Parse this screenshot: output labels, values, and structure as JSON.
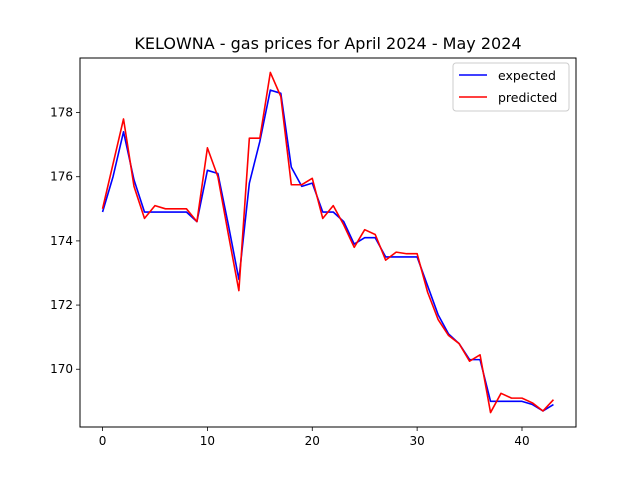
{
  "chart_data": {
    "type": "line",
    "title": "KELOWNA - gas prices for April 2024 - May 2024",
    "xlabel": "",
    "ylabel": "",
    "xlim": [
      -2.15,
      45.15
    ],
    "ylim": [
      168.2,
      179.7
    ],
    "xticks": [
      0,
      10,
      20,
      30,
      40
    ],
    "yticks": [
      170,
      172,
      174,
      176,
      178
    ],
    "grid": false,
    "legend_position": "upper right",
    "x": [
      0,
      1,
      2,
      3,
      4,
      5,
      6,
      7,
      8,
      9,
      10,
      11,
      12,
      13,
      14,
      15,
      16,
      17,
      18,
      19,
      20,
      21,
      22,
      23,
      24,
      25,
      26,
      27,
      28,
      29,
      30,
      31,
      32,
      33,
      34,
      35,
      36,
      37,
      38,
      39,
      40,
      41,
      42,
      43
    ],
    "series": [
      {
        "name": "expected",
        "color": "#0000ff",
        "values": [
          174.9,
          176.0,
          177.4,
          175.9,
          174.9,
          174.9,
          174.9,
          174.9,
          174.9,
          174.6,
          176.2,
          176.1,
          174.5,
          172.8,
          175.8,
          177.1,
          178.7,
          178.6,
          176.3,
          175.7,
          175.8,
          174.9,
          174.9,
          174.6,
          173.9,
          174.1,
          174.1,
          173.5,
          173.5,
          173.5,
          173.5,
          172.6,
          171.7,
          171.1,
          170.8,
          170.3,
          170.3,
          169.0,
          169.0,
          169.0,
          169.0,
          168.9,
          168.7,
          168.9
        ]
      },
      {
        "name": "predicted",
        "color": "#ff0000",
        "values": [
          175.0,
          176.4,
          177.8,
          175.7,
          174.7,
          175.1,
          175.0,
          175.0,
          175.0,
          174.6,
          176.9,
          176.0,
          174.2,
          172.45,
          177.2,
          177.2,
          179.25,
          178.5,
          175.75,
          175.75,
          175.95,
          174.7,
          175.1,
          174.5,
          173.8,
          174.35,
          174.2,
          173.4,
          173.65,
          173.6,
          173.6,
          172.4,
          171.55,
          171.05,
          170.8,
          170.25,
          170.45,
          168.65,
          169.25,
          169.1,
          169.1,
          168.95,
          168.7,
          169.05
        ]
      }
    ]
  }
}
